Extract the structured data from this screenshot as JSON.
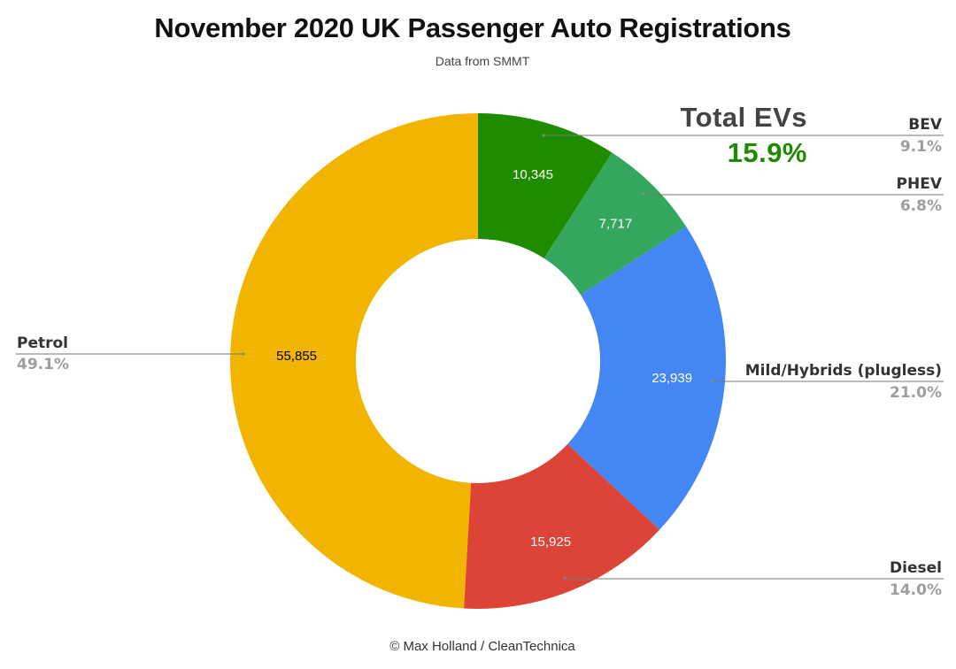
{
  "chart_data": {
    "type": "pie",
    "donut": true,
    "title": "November 2020 UK Passenger Auto Registrations",
    "subtitle": "Data from SMMT",
    "footer": "© Max Holland / CleanTechnica",
    "annotation": {
      "title": "Total EVs",
      "value": "15.9%",
      "color": "#1e8a00"
    },
    "slices": [
      {
        "name": "BEV",
        "value": 10345,
        "value_label": "10,345",
        "percent_label": "9.1%",
        "color": "#1f8c00",
        "value_text_color": "#ffffff"
      },
      {
        "name": "PHEV",
        "value": 7717,
        "value_label": "7,717",
        "percent_label": "6.8%",
        "color": "#34a65e",
        "value_text_color": "#ffffff"
      },
      {
        "name": "Mild/Hybrids (plugless)",
        "value": 23939,
        "value_label": "23,939",
        "percent_label": "21.0%",
        "color": "#4486f4",
        "value_text_color": "#ffffff"
      },
      {
        "name": "Diesel",
        "value": 15925,
        "value_label": "15,925",
        "percent_label": "14.0%",
        "color": "#dc4437",
        "value_text_color": "#ffffff"
      },
      {
        "name": "Petrol",
        "value": 55855,
        "value_label": "55,855",
        "percent_label": "49.1%",
        "color": "#f1b400",
        "value_text_color": "#000000"
      }
    ]
  }
}
